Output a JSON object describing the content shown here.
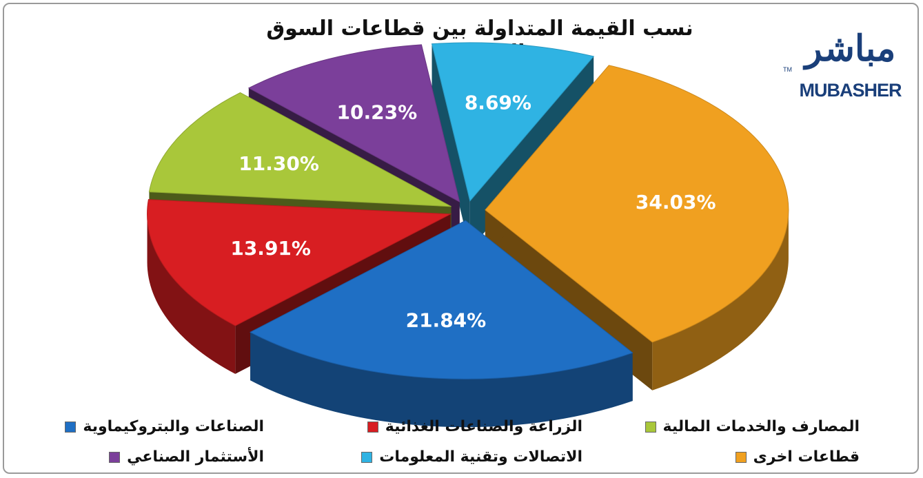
{
  "chart_data": {
    "type": "pie",
    "title": "نسب القيمة المتداولة بين قطاعات السوق السعودي",
    "slices": [
      {
        "name": "قطاعات اخرى",
        "value": 34.03,
        "label": "34.03%",
        "color": "#f0a020"
      },
      {
        "name": "الصناعات والبتروكيماوية",
        "value": 21.84,
        "label": "21.84%",
        "color": "#1f6fc4"
      },
      {
        "name": "الزراعة والصناعات الغذائية",
        "value": 13.91,
        "label": "13.91%",
        "color": "#d81e22"
      },
      {
        "name": "المصارف والخدمات المالية",
        "value": 11.3,
        "label": "11.30%",
        "color": "#a9c73a"
      },
      {
        "name": "الأستثمار الصناعي",
        "value": 10.23,
        "label": "10.23%",
        "color": "#7b3f9a"
      },
      {
        "name": "الاتصالات وتقنية المعلومات",
        "value": 8.69,
        "label": "8.69%",
        "color": "#2fb3e3"
      }
    ]
  },
  "logo": {
    "arabic": "مباشر",
    "english": "MUBASHER",
    "tm": "TM"
  }
}
